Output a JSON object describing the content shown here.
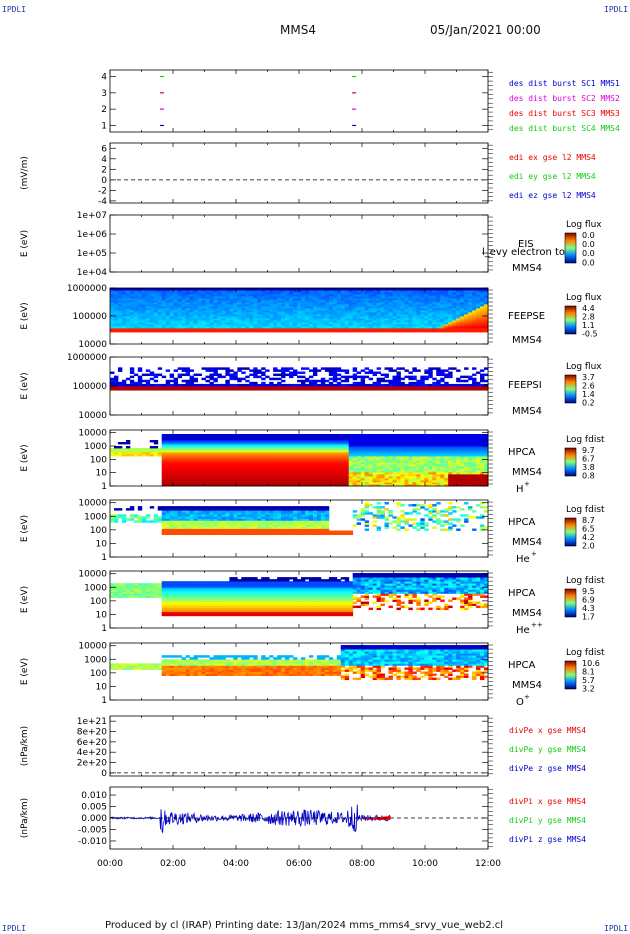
{
  "page": {
    "corner_tl": "IPDLI",
    "corner_tr": "IPDLI",
    "corner_bl": "IPDLI",
    "corner_br": "IPDLI",
    "spacecraft": "MMS4",
    "datetime": "05/Jan/2021 00:00",
    "footer": "Produced by cl (IRAP)   Printing date: 13/Jan/2024   mms_mms4_srvy_vue_web2.cl"
  },
  "colors": {
    "red": "#ee0000",
    "green": "#11cc11",
    "blue": "#0000cc",
    "magenta": "#dd00dd",
    "dark_blue": "#000099"
  },
  "chart_data": {
    "type": "heatmap",
    "x_ticks": [
      "00:00",
      "02:00",
      "04:00",
      "06:00",
      "08:00",
      "10:00",
      "12:00"
    ],
    "x_range_hours": [
      0,
      12
    ],
    "panels": [
      {
        "id": "burst",
        "type": "scatter",
        "ylabel": "",
        "y_ticks": [
          "4",
          "3",
          "2",
          "1"
        ],
        "y_range": [
          0.6,
          4.4
        ],
        "legend": [
          "des dist burst SC1 MMS1",
          "des dist burst SC2 MMS2",
          "des dist burst SC3 MMS3",
          "des dist burst SC4 MMS4"
        ],
        "legend_colors": [
          "#0000cc",
          "#dd00dd",
          "#ee0000",
          "#11cc11"
        ],
        "markers": [
          {
            "x": 1.65,
            "y": 4,
            "color": "#11cc11"
          },
          {
            "x": 1.65,
            "y": 3,
            "color": "#ee0000"
          },
          {
            "x": 1.65,
            "y": 2,
            "color": "#dd00dd"
          },
          {
            "x": 1.65,
            "y": 1,
            "color": "#0000cc"
          },
          {
            "x": 7.75,
            "y": 4,
            "color": "#11cc11"
          },
          {
            "x": 7.75,
            "y": 3,
            "color": "#ee0000"
          },
          {
            "x": 7.75,
            "y": 2,
            "color": "#dd00dd"
          },
          {
            "x": 7.75,
            "y": 1,
            "color": "#0000cc"
          }
        ]
      },
      {
        "id": "edi",
        "type": "line",
        "ylabel": "(mV/m)",
        "y_ticks": [
          "6",
          "4",
          "2",
          "0",
          "-2",
          "-4"
        ],
        "y_range": [
          -4.4,
          7
        ],
        "legend": [
          "edi ex gse l2 MMS4",
          "edi ey gse l2 MMS4",
          "edi ez gse l2 MMS4"
        ],
        "legend_colors": [
          "#ee0000",
          "#11cc11",
          "#0000cc"
        ],
        "zero_line": 0
      },
      {
        "id": "eis",
        "type": "heatmap",
        "ylabel": "E (eV)",
        "y_ticks": [
          "1e+07",
          "1e+06",
          "1e+05",
          "1e+04"
        ],
        "y_log_range": [
          4,
          7
        ],
        "instrument": "EIS",
        "sc": "MMS4",
        "overlay_text": "l_evy electron to",
        "colorbar_title": "Log flux",
        "colorbar_ticks": [
          "0.0",
          "0.0",
          "0.0",
          "0.0"
        ],
        "fill": "none"
      },
      {
        "id": "feepse",
        "type": "heatmap",
        "ylabel": "E (eV)",
        "y_ticks": [
          "1000000",
          "100000",
          "10000"
        ],
        "y_log_range": [
          4,
          6
        ],
        "instrument": "FEEPSE",
        "sc": "MMS4",
        "colorbar_title": "Log flux",
        "colorbar_ticks": [
          "4.4",
          "2.8",
          "1.1",
          "-0.5"
        ],
        "fill": "feepse"
      },
      {
        "id": "feepsi",
        "type": "heatmap",
        "ylabel": "E (eV)",
        "y_ticks": [
          "1000000",
          "100000",
          "10000"
        ],
        "y_log_range": [
          4,
          6
        ],
        "instrument": "FEEPSI",
        "sc": "MMS4",
        "colorbar_title": "Log flux",
        "colorbar_ticks": [
          "3.7",
          "2.6",
          "1.4",
          "0.2"
        ],
        "fill": "feepsi"
      },
      {
        "id": "hpca_h",
        "type": "heatmap",
        "ylabel": "E (eV)",
        "y_ticks": [
          "10000",
          "1000",
          "100",
          "10",
          "1"
        ],
        "y_log_range": [
          0,
          4.2
        ],
        "instrument": "HPCA",
        "sc": "MMS4",
        "species": "H",
        "species_sup": "+",
        "colorbar_title": "Log fdist",
        "colorbar_ticks": [
          "9.7",
          "6.7",
          "3.8",
          "0.8"
        ],
        "fill": "hpca_h"
      },
      {
        "id": "hpca_he",
        "type": "heatmap",
        "ylabel": "E (eV)",
        "y_ticks": [
          "10000",
          "1000",
          "100",
          "10",
          "1"
        ],
        "y_log_range": [
          0,
          4.2
        ],
        "instrument": "HPCA",
        "sc": "MMS4",
        "species": "He",
        "species_sup": "+",
        "colorbar_title": "Log fdist",
        "colorbar_ticks": [
          "8.7",
          "6.5",
          "4.2",
          "2.0"
        ],
        "fill": "hpca_he"
      },
      {
        "id": "hpca_hepp",
        "type": "heatmap",
        "ylabel": "E (eV)",
        "y_ticks": [
          "10000",
          "1000",
          "100",
          "10",
          "1"
        ],
        "y_log_range": [
          0,
          4.2
        ],
        "instrument": "HPCA",
        "sc": "MMS4",
        "species": "He",
        "species_sup": "++",
        "colorbar_title": "Log fdist",
        "colorbar_ticks": [
          "9.5",
          "6.9",
          "4.3",
          "1.7"
        ],
        "fill": "hpca_hepp"
      },
      {
        "id": "hpca_o",
        "type": "heatmap",
        "ylabel": "E (eV)",
        "y_ticks": [
          "10000",
          "1000",
          "100",
          "10",
          "1"
        ],
        "y_log_range": [
          0,
          4.2
        ],
        "instrument": "HPCA",
        "sc": "MMS4",
        "species": "O",
        "species_sup": "+",
        "colorbar_title": "Log fdist",
        "colorbar_ticks": [
          "10.6",
          "8.1",
          "5.7",
          "3.2"
        ],
        "fill": "hpca_o"
      },
      {
        "id": "divpe",
        "type": "line",
        "ylabel": "(nPa/km)",
        "y_ticks": [
          "1e+21",
          "8e+20",
          "6e+20",
          "4e+20",
          "2e+20",
          "0"
        ],
        "y_range": [
          -6e+19,
          1.1e+21
        ],
        "legend": [
          "divPe x gse MMS4",
          "divPe y gse MMS4",
          "divPe z gse MMS4"
        ],
        "legend_colors": [
          "#ee0000",
          "#11cc11",
          "#0000cc"
        ],
        "zero_line": 0
      },
      {
        "id": "divpi",
        "type": "line",
        "ylabel": "(nPa/km)",
        "y_ticks": [
          "0.010",
          "0.005",
          "0.000",
          "-0.005",
          "-0.010"
        ],
        "y_range": [
          -0.0135,
          0.0135
        ],
        "legend": [
          "divPi x gse MMS4",
          "divPi y gse MMS4",
          "divPi z gse MMS4"
        ],
        "legend_colors": [
          "#ee0000",
          "#11cc11",
          "#0000cc"
        ],
        "zero_line": 0,
        "data_end_hour": 8.9
      }
    ]
  }
}
